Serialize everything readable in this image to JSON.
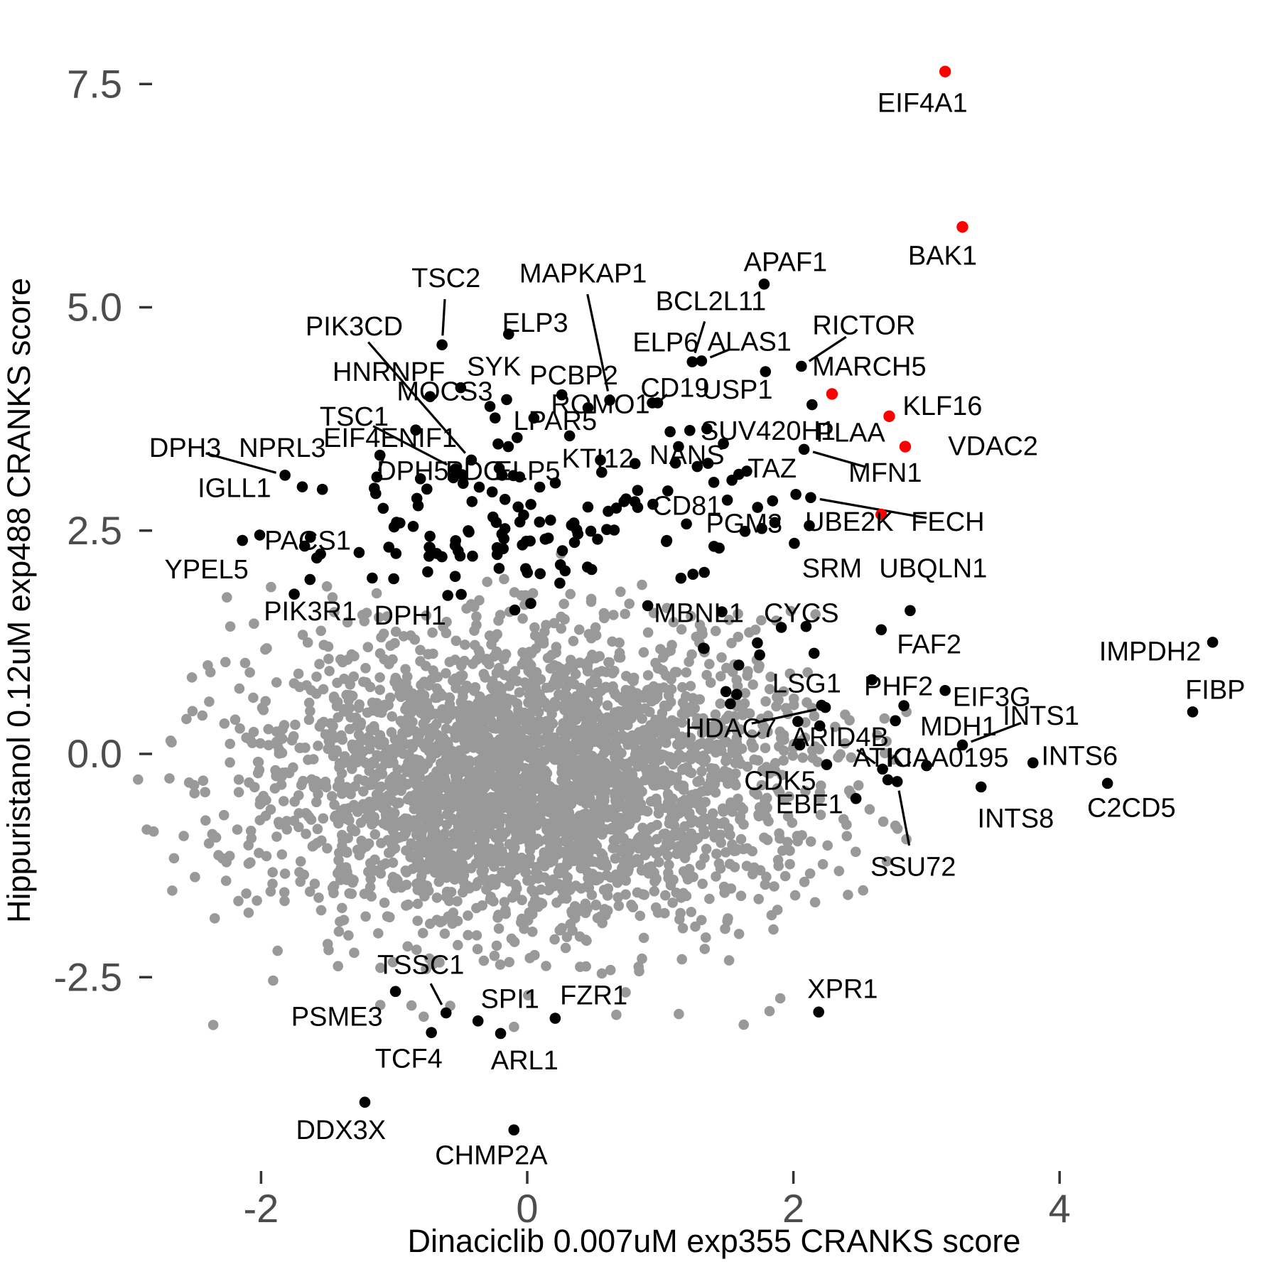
{
  "axes": {
    "x": {
      "title": "Dinaciclib 0.007uM exp355 CRANKS score",
      "ticks": [
        "-2",
        "0",
        "2",
        "4"
      ],
      "tick_values": [
        -2,
        0,
        2,
        4
      ]
    },
    "y": {
      "title": "Hippuristanol 0.12uM exp488 CRANKS score",
      "ticks": [
        "7.5",
        "5.0",
        "2.5",
        "0.0",
        "-2.5"
      ],
      "tick_values": [
        7.5,
        5.0,
        2.5,
        0.0,
        -2.5
      ]
    }
  },
  "colors": {
    "background_points": "#999999",
    "hit_points": "#000000",
    "highlight_points": "#ff0000",
    "tick_text": "#4d4d4d",
    "tick_mark": "#333333",
    "label_text": "#000000",
    "leader_line": "#000000"
  },
  "chart_data": {
    "type": "scatter",
    "title": "",
    "xlabel": "Dinaciclib 0.007uM exp355 CRANKS score",
    "ylabel": "Hippuristanol 0.12uM exp488 CRANKS score",
    "xlim": [
      -3.9,
      5.65
    ],
    "ylim": [
      -5.8,
      8.4
    ],
    "x_ticks": [
      -2,
      0,
      2,
      4
    ],
    "y_ticks": [
      7.5,
      5.0,
      2.5,
      0.0,
      -2.5
    ],
    "grid": false,
    "legend": "none",
    "labeled_points": [
      {
        "gene": "EIF4A1",
        "x": 3.14,
        "y": 7.64,
        "color": "red",
        "lx": 2.97,
        "ly": 7.29,
        "leader": false
      },
      {
        "gene": "BAK1",
        "x": 3.27,
        "y": 5.9,
        "color": "red",
        "lx": 3.12,
        "ly": 5.58,
        "leader": false
      },
      {
        "gene": "APAF1",
        "x": 1.78,
        "y": 5.26,
        "color": "black",
        "lx": 1.94,
        "ly": 5.51,
        "leader": false
      },
      {
        "gene": "TSC2",
        "x": -0.64,
        "y": 4.58,
        "color": "black",
        "lx": -0.61,
        "ly": 5.33,
        "leader": true
      },
      {
        "gene": "MAPKAP1",
        "x": 0.62,
        "y": 3.96,
        "color": "black",
        "lx": 0.42,
        "ly": 5.38,
        "leader": true
      },
      {
        "gene": "ELP3",
        "x": -0.14,
        "y": 4.7,
        "color": "black",
        "lx": 0.06,
        "ly": 4.83,
        "leader": false
      },
      {
        "gene": "SYK",
        "x": -0.5,
        "y": 4.1,
        "color": "black",
        "lx": -0.25,
        "ly": 4.34,
        "leader": false
      },
      {
        "gene": "PCBP2",
        "x": 0.26,
        "y": 4.02,
        "color": "black",
        "lx": 0.35,
        "ly": 4.24,
        "leader": false
      },
      {
        "gene": "PIK3CD",
        "x": -0.42,
        "y": 3.29,
        "color": "black",
        "lx": -1.3,
        "ly": 4.79,
        "leader": true
      },
      {
        "gene": "HNRNPF",
        "x": -0.73,
        "y": 4.0,
        "color": "black",
        "lx": -1.04,
        "ly": 4.28,
        "leader": false
      },
      {
        "gene": "TSC1",
        "x": -0.54,
        "y": 3.19,
        "color": "black",
        "lx": -1.3,
        "ly": 3.78,
        "leader": true
      },
      {
        "gene": "MOCS3",
        "x": -0.28,
        "y": 3.89,
        "color": "black",
        "lx": -0.62,
        "ly": 4.06,
        "leader": false
      },
      {
        "gene": "BCL2L11",
        "x": 1.24,
        "y": 4.39,
        "color": "black",
        "lx": 1.38,
        "ly": 5.07,
        "leader": true
      },
      {
        "gene": "ALAS1",
        "x": 1.31,
        "y": 4.4,
        "color": "black",
        "lx": 1.67,
        "ly": 4.62,
        "leader": true
      },
      {
        "gene": "RICTOR",
        "x": 2.06,
        "y": 4.34,
        "color": "black",
        "lx": 2.53,
        "ly": 4.8,
        "leader": true
      },
      {
        "gene": "MARCH5",
        "x": 2.14,
        "y": 3.91,
        "color": "black",
        "lx": 2.57,
        "ly": 4.34,
        "leader": false
      },
      {
        "gene": "USP1",
        "x": 1.79,
        "y": 4.28,
        "color": "black",
        "lx": 1.58,
        "ly": 4.08,
        "leader": false
      },
      {
        "gene": "CD19",
        "x": 0.98,
        "y": 3.93,
        "color": "black",
        "lx": 1.11,
        "ly": 4.1,
        "leader": true
      },
      {
        "gene": "ROMO1",
        "x": 0.94,
        "y": 3.93,
        "color": "black",
        "lx": 0.55,
        "ly": 3.92,
        "leader": false
      },
      {
        "gene": "LPAR5",
        "x": 0.05,
        "y": 3.76,
        "color": "black",
        "lx": 0.21,
        "ly": 3.73,
        "leader": false
      },
      {
        "gene": "EIF4ENIF1",
        "x": -1.13,
        "y": 3.1,
        "color": "black",
        "lx": -1.03,
        "ly": 3.54,
        "leader": true
      },
      {
        "gene": "DPH3",
        "x": -1.82,
        "y": 3.12,
        "color": "black",
        "lx": -2.57,
        "ly": 3.43,
        "leader": true
      },
      {
        "gene": "IGLL1",
        "x": -1.69,
        "y": 2.99,
        "color": "black",
        "lx": -2.2,
        "ly": 2.98,
        "leader": false
      },
      {
        "gene": "KTI12",
        "x": 0.55,
        "y": 3.29,
        "color": "black",
        "lx": 0.53,
        "ly": 3.31,
        "leader": false
      },
      {
        "gene": "NANS",
        "x": 0.81,
        "y": 3.25,
        "color": "black",
        "lx": 1.2,
        "ly": 3.35,
        "leader": false
      },
      {
        "gene": "SUV420H1",
        "x": 1.35,
        "y": 3.64,
        "color": "black",
        "lx": 1.81,
        "ly": 3.62,
        "leader": false
      },
      {
        "gene": "KLF16",
        "x": 2.72,
        "y": 3.78,
        "color": "red",
        "lx": 3.12,
        "ly": 3.9,
        "leader": false
      },
      {
        "gene": "VDAC2",
        "x": 2.84,
        "y": 3.44,
        "color": "red",
        "lx": 3.5,
        "ly": 3.45,
        "leader": false
      },
      {
        "gene": "MFN1",
        "x": 2.08,
        "y": 3.41,
        "color": "black",
        "lx": 2.69,
        "ly": 3.15,
        "leader": true
      },
      {
        "gene": "TAZ",
        "x": 1.59,
        "y": 3.13,
        "color": "black",
        "lx": 1.84,
        "ly": 3.2,
        "leader": false
      },
      {
        "gene": "CD81",
        "x": 0.83,
        "y": 2.76,
        "color": "black",
        "lx": 1.2,
        "ly": 2.78,
        "leader": false
      },
      {
        "gene": "PGM3",
        "x": 1.86,
        "y": 2.59,
        "color": "black",
        "lx": 1.63,
        "ly": 2.58,
        "leader": false
      },
      {
        "gene": "UBE2K",
        "x": 2.66,
        "y": 2.68,
        "color": "red",
        "lx": 2.42,
        "ly": 2.6,
        "leader": false
      },
      {
        "gene": "FECH",
        "x": 2.13,
        "y": 2.87,
        "color": "black",
        "lx": 3.16,
        "ly": 2.6,
        "leader": true
      },
      {
        "gene": "PACS1",
        "x": -2.01,
        "y": 2.45,
        "color": "black",
        "lx": -1.65,
        "ly": 2.39,
        "leader": false
      },
      {
        "gene": "YPEL5",
        "x": -2.14,
        "y": 2.39,
        "color": "black",
        "lx": -2.41,
        "ly": 2.07,
        "leader": false
      },
      {
        "gene": "FAF2",
        "x": 2.66,
        "y": 1.39,
        "color": "black",
        "lx": 3.02,
        "ly": 1.23,
        "leader": false
      },
      {
        "gene": "PHF2",
        "x": 2.83,
        "y": 0.54,
        "color": "black",
        "lx": 2.79,
        "ly": 0.76,
        "leader": false
      },
      {
        "gene": "EIF3G",
        "x": 3.14,
        "y": 0.71,
        "color": "black",
        "lx": 3.49,
        "ly": 0.64,
        "leader": false
      },
      {
        "gene": "LSG1",
        "x": 2.59,
        "y": 0.83,
        "color": "black",
        "lx": 2.1,
        "ly": 0.79,
        "leader": false
      },
      {
        "gene": "IMPDH2",
        "x": 5.15,
        "y": 1.25,
        "color": "black",
        "lx": 4.68,
        "ly": 1.15,
        "leader": false
      },
      {
        "gene": "FIBP",
        "x": 5.0,
        "y": 0.47,
        "color": "black",
        "lx": 5.17,
        "ly": 0.72,
        "leader": false
      },
      {
        "gene": "HDAC7",
        "x": 2.24,
        "y": 0.52,
        "color": "black",
        "lx": 1.53,
        "ly": 0.29,
        "leader": true
      },
      {
        "gene": "ARID4B",
        "x": 2.67,
        "y": -0.17,
        "color": "black",
        "lx": 2.35,
        "ly": 0.19,
        "leader": true
      },
      {
        "gene": "INTS1",
        "x": 3.27,
        "y": 0.1,
        "color": "black",
        "lx": 3.86,
        "ly": 0.43,
        "leader": true
      },
      {
        "gene": "CDK5",
        "x": 2.25,
        "y": -0.12,
        "color": "black",
        "lx": 1.9,
        "ly": -0.3,
        "leader": false
      },
      {
        "gene": "INTS6",
        "x": 3.8,
        "y": -0.1,
        "color": "black",
        "lx": 4.15,
        "ly": -0.02,
        "leader": false
      },
      {
        "gene": "INTS8",
        "x": 3.41,
        "y": -0.37,
        "color": "black",
        "lx": 3.67,
        "ly": -0.72,
        "leader": false
      },
      {
        "gene": "C2CD5",
        "x": 4.36,
        "y": -0.33,
        "color": "black",
        "lx": 4.54,
        "ly": -0.6,
        "leader": false
      },
      {
        "gene": "SSU72",
        "x": 2.78,
        "y": -0.31,
        "color": "black",
        "lx": 2.9,
        "ly": -1.26,
        "leader": true
      },
      {
        "gene": "EBF1",
        "x": 2.47,
        "y": -0.5,
        "color": "black",
        "lx": 2.12,
        "ly": -0.56,
        "leader": false
      },
      {
        "gene": "XPR1",
        "x": 2.19,
        "y": -2.89,
        "color": "black",
        "lx": 2.37,
        "ly": -2.63,
        "leader": false
      },
      {
        "gene": "TSSC1",
        "x": -0.61,
        "y": -2.9,
        "color": "black",
        "lx": -0.8,
        "ly": -2.36,
        "leader": true
      },
      {
        "gene": "PSME3",
        "x": -0.99,
        "y": -2.66,
        "color": "black",
        "lx": -1.43,
        "ly": -2.94,
        "leader": false
      },
      {
        "gene": "SPI1",
        "x": -0.37,
        "y": -2.99,
        "color": "black",
        "lx": -0.13,
        "ly": -2.74,
        "leader": false
      },
      {
        "gene": "FZR1",
        "x": 0.21,
        "y": -2.96,
        "color": "black",
        "lx": 0.5,
        "ly": -2.7,
        "leader": false
      },
      {
        "gene": "TCF4",
        "x": -0.72,
        "y": -3.12,
        "color": "black",
        "lx": -0.89,
        "ly": -3.41,
        "leader": false
      },
      {
        "gene": "ARL1",
        "x": -0.2,
        "y": -3.13,
        "color": "black",
        "lx": -0.02,
        "ly": -3.43,
        "leader": false
      },
      {
        "gene": "DDX3X",
        "x": -1.22,
        "y": -3.9,
        "color": "black",
        "lx": -1.4,
        "ly": -4.21,
        "leader": false
      },
      {
        "gene": "CHMP2A",
        "x": -0.1,
        "y": -4.21,
        "color": "black",
        "lx": -0.27,
        "ly": -4.49,
        "leader": false
      }
    ],
    "floating_labels": [
      {
        "text": "ELP6",
        "x": 1.04,
        "y": 4.61
      },
      {
        "text": "NPRL3",
        "x": -1.84,
        "y": 3.43
      },
      {
        "text": "DPH5",
        "x": -0.86,
        "y": 3.17
      },
      {
        "text": "PDC",
        "x": -0.4,
        "y": 3.17
      },
      {
        "text": "ELP5",
        "x": 0.0,
        "y": 3.17
      },
      {
        "text": "PLAA",
        "x": 2.43,
        "y": 3.6
      },
      {
        "text": "SRM",
        "x": 2.29,
        "y": 2.08
      },
      {
        "text": "UBQLN1",
        "x": 3.05,
        "y": 2.08
      },
      {
        "text": "MBNL1",
        "x": 1.29,
        "y": 1.58
      },
      {
        "text": "CYCS",
        "x": 2.06,
        "y": 1.58
      },
      {
        "text": "MDH1",
        "x": 3.24,
        "y": 0.31
      },
      {
        "text": "ATIC",
        "x": 2.67,
        "y": -0.04
      },
      {
        "text": "KIAA0195",
        "x": 3.16,
        "y": -0.04
      },
      {
        "text": "PIK3R1",
        "x": -1.63,
        "y": 1.6
      },
      {
        "text": "DPH1",
        "x": -0.88,
        "y": 1.55
      }
    ],
    "extra_points": [
      {
        "x": 2.29,
        "y": 4.03,
        "color": "red"
      },
      {
        "x": 2.71,
        "y": -0.29,
        "color": "black"
      }
    ],
    "background_cloud": {
      "seed": 42,
      "color": "#999999",
      "radius": 7.3,
      "groups": [
        {
          "n": 2900,
          "mx": 0.05,
          "sdx": 0.98,
          "my": -0.3,
          "sdy": 0.78,
          "clipx": [
            -2.7,
            2.85
          ],
          "clipy": [
            -2.45,
            1.9
          ]
        },
        {
          "n": 300,
          "mx": 0.0,
          "sdx": 1.3,
          "my": -0.4,
          "sdy": 1.1,
          "clipx": [
            -2.95,
            3.0
          ],
          "clipy": [
            -3.05,
            2.3
          ]
        },
        {
          "n": 22,
          "mx": 0.1,
          "sdx": 1.5,
          "my": -2.6,
          "sdy": 0.5,
          "clipx": [
            -2.9,
            2.2
          ],
          "clipy": [
            -3.35,
            -1.8
          ]
        }
      ]
    },
    "hit_cloud": {
      "seed": 7,
      "color": "#000000",
      "radius": 7.8,
      "groups": [
        {
          "n": 140,
          "mx": 0.1,
          "sdx": 1.05,
          "my": 2.55,
          "sdy": 0.5,
          "clipx": [
            -2.3,
            2.45
          ],
          "clipy": [
            1.5,
            4.0
          ]
        },
        {
          "n": 18,
          "mx": 1.9,
          "sdx": 0.6,
          "my": 0.8,
          "sdy": 0.55,
          "clipx": [
            0.9,
            3.2
          ],
          "clipy": [
            -0.5,
            1.7
          ]
        }
      ]
    }
  }
}
